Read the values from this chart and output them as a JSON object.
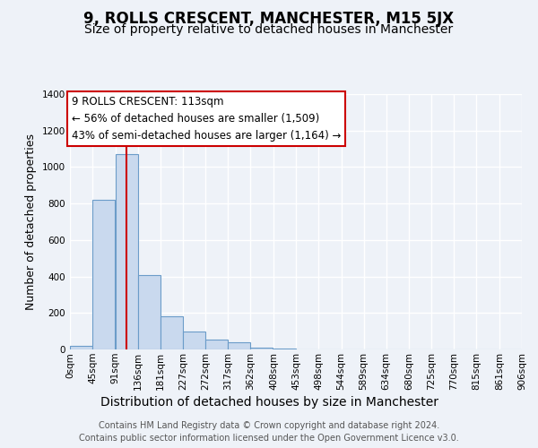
{
  "title": "9, ROLLS CRESCENT, MANCHESTER, M15 5JX",
  "subtitle": "Size of property relative to detached houses in Manchester",
  "bar_heights": [
    20,
    820,
    1070,
    410,
    180,
    100,
    55,
    38,
    10,
    5,
    0,
    0,
    0,
    0,
    0,
    0,
    0,
    0,
    0,
    0
  ],
  "bin_edges": [
    0,
    45,
    91,
    136,
    181,
    227,
    272,
    317,
    362,
    408,
    453,
    498,
    544,
    589,
    634,
    680,
    725,
    770,
    815,
    861,
    906
  ],
  "bin_labels": [
    "0sqm",
    "45sqm",
    "91sqm",
    "136sqm",
    "181sqm",
    "227sqm",
    "272sqm",
    "317sqm",
    "362sqm",
    "408sqm",
    "453sqm",
    "498sqm",
    "544sqm",
    "589sqm",
    "634sqm",
    "680sqm",
    "725sqm",
    "770sqm",
    "815sqm",
    "861sqm",
    "906sqm"
  ],
  "bar_color": "#c9d9ee",
  "bar_edge_color": "#6b9cc9",
  "ylabel": "Number of detached properties",
  "xlabel": "Distribution of detached houses by size in Manchester",
  "ylim": [
    0,
    1400
  ],
  "yticks": [
    0,
    200,
    400,
    600,
    800,
    1000,
    1200,
    1400
  ],
  "property_line_x": 113,
  "annotation_title": "9 ROLLS CRESCENT: 113sqm",
  "annotation_line1": "← 56% of detached houses are smaller (1,509)",
  "annotation_line2": "43% of semi-detached houses are larger (1,164) →",
  "annotation_box_color": "#ffffff",
  "annotation_box_edge_color": "#cc0000",
  "red_line_color": "#cc0000",
  "background_color": "#eef2f8",
  "footer_line1": "Contains HM Land Registry data © Crown copyright and database right 2024.",
  "footer_line2": "Contains public sector information licensed under the Open Government Licence v3.0.",
  "title_fontsize": 12,
  "subtitle_fontsize": 10,
  "xlabel_fontsize": 10,
  "ylabel_fontsize": 9,
  "tick_fontsize": 7.5,
  "annotation_title_fontsize": 9,
  "annotation_body_fontsize": 8.5,
  "footer_fontsize": 7,
  "grid_color": "#ffffff",
  "axis_bg_color": "#eef2f8"
}
